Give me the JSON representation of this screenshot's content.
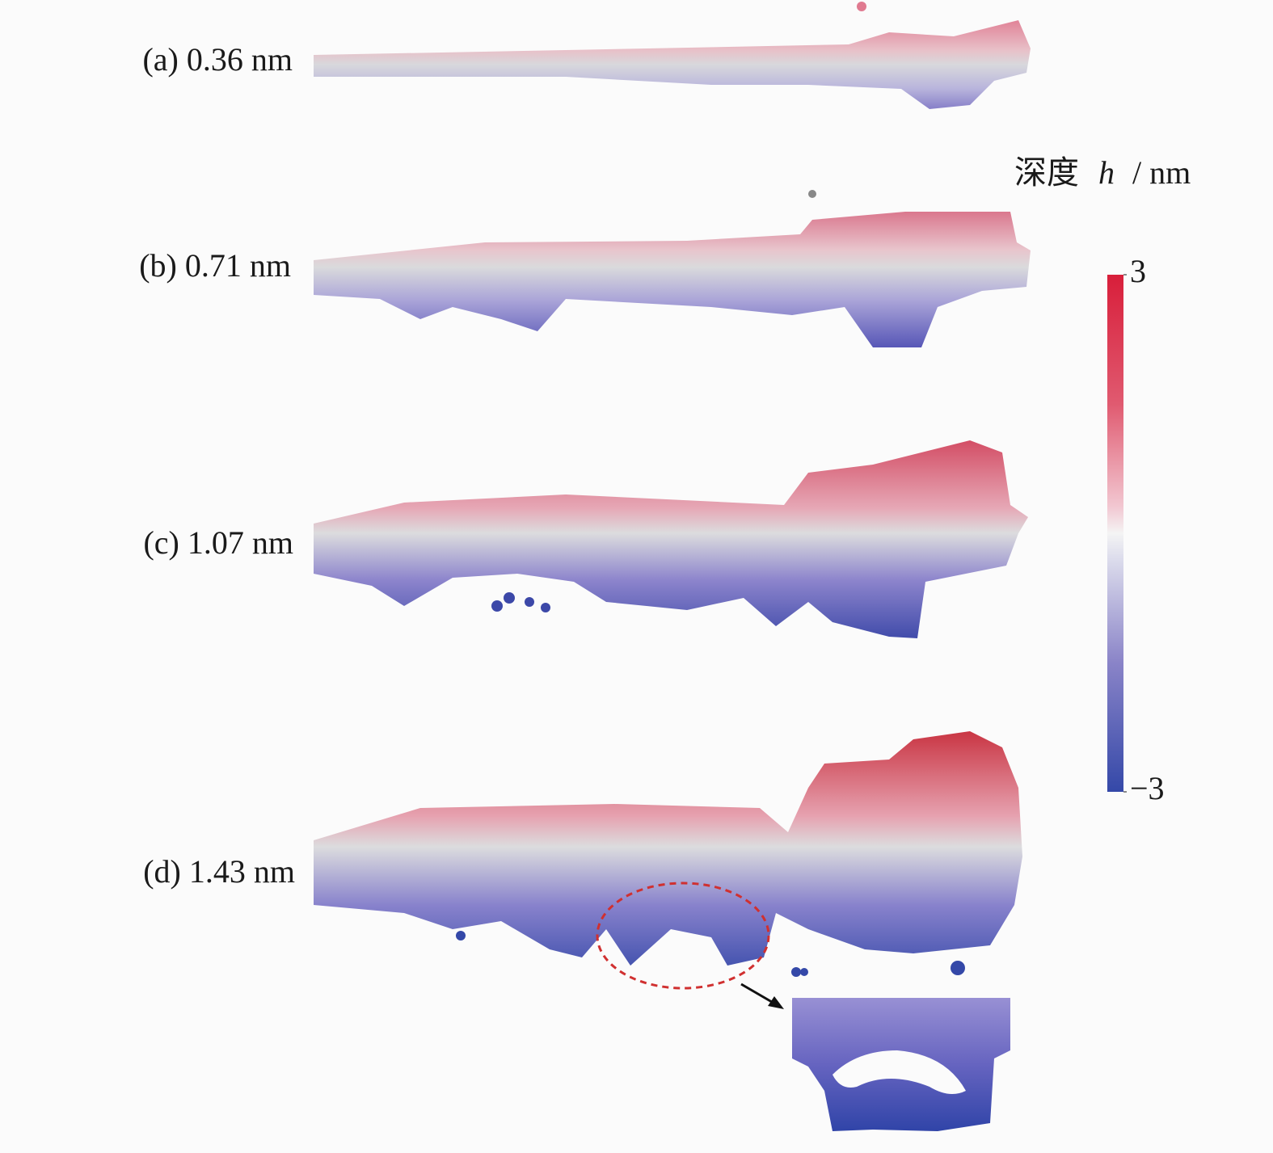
{
  "panels": [
    {
      "label": "(a) 0.36 nm"
    },
    {
      "label": "(b) 0.71 nm"
    },
    {
      "label": "(c) 1.07 nm"
    },
    {
      "label": "(d) 1.43 nm"
    }
  ],
  "colorbar": {
    "title_text": "深度",
    "title_var": "h",
    "title_unit": "/ nm",
    "lim": [
      -3,
      3
    ],
    "ticks": [
      3,
      {
        "value": -3,
        "label": "−3"
      }
    ]
  }
}
